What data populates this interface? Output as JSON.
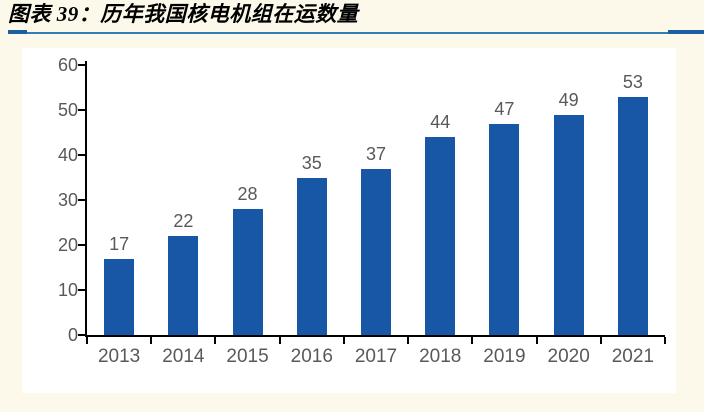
{
  "page": {
    "background": "#FDF9EA",
    "panel_background": "#FFFFFF"
  },
  "header": {
    "title": "图表 39：历年我国核电机组在运数量",
    "title_color": "#000000",
    "underline_color": "#2E7EB8",
    "underline_cap_color": "#1C5F9E"
  },
  "chart_data": {
    "type": "bar",
    "title": "图表 39：历年我国核电机组在运数量",
    "categories": [
      "2013",
      "2014",
      "2015",
      "2016",
      "2017",
      "2018",
      "2019",
      "2020",
      "2021"
    ],
    "values": [
      17,
      22,
      28,
      35,
      37,
      44,
      47,
      49,
      53
    ],
    "data_labels": [
      "17",
      "22",
      "28",
      "35",
      "37",
      "44",
      "47",
      "49",
      "53"
    ],
    "ytick_labels": [
      "0",
      "10",
      "20",
      "30",
      "40",
      "50",
      "60"
    ],
    "ylim": [
      0,
      60
    ],
    "ytick_step": 10,
    "xlabel": "",
    "ylabel": "",
    "grid": false,
    "legend": "none",
    "bar_color": "#1757A6",
    "axis_color": "#000000",
    "tick_label_color": "#595959",
    "value_label_color": "#595959"
  }
}
